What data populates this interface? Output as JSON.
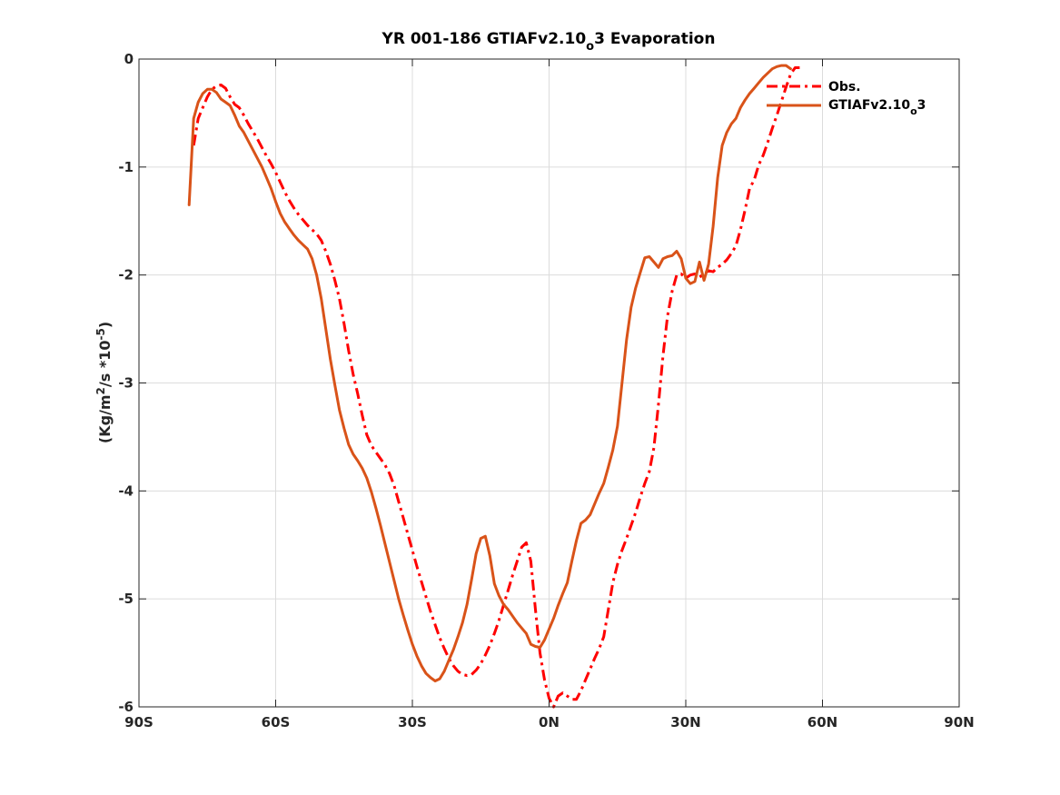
{
  "chart_data": {
    "type": "line",
    "title": {
      "main": "YR 001-186 GTIAFv2.10",
      "sub": "o",
      "tail": "3 Evaporation"
    },
    "ylabel": {
      "base": "(Kg/m",
      "sup1": "2",
      "mid": "/s *10",
      "sup2": "-5",
      "end": ")"
    },
    "xlabel": "",
    "xlim": [
      -90,
      90
    ],
    "ylim": [
      -6,
      0
    ],
    "xticks": [
      -90,
      -60,
      -30,
      0,
      30,
      60,
      90
    ],
    "xtick_labels": [
      "90S",
      "60S",
      "30S",
      "0N",
      "30N",
      "60N",
      "90N"
    ],
    "yticks": [
      0,
      -1,
      -2,
      -3,
      -4,
      -5,
      -6
    ],
    "ytick_labels": [
      "0",
      "-1",
      "-2",
      "-3",
      "-4",
      "-5",
      "-6"
    ],
    "grid": true,
    "legend_position": "top-right",
    "series": [
      {
        "name": "Obs.",
        "legend_label": {
          "main": "Obs.",
          "sub": "",
          "tail": ""
        },
        "color": "#ff0000",
        "style": "dashdot",
        "points": [
          [
            -78,
            -0.8
          ],
          [
            -77,
            -0.55
          ],
          [
            -76,
            -0.45
          ],
          [
            -75,
            -0.35
          ],
          [
            -74,
            -0.28
          ],
          [
            -73,
            -0.25
          ],
          [
            -72,
            -0.24
          ],
          [
            -71,
            -0.27
          ],
          [
            -70,
            -0.35
          ],
          [
            -69,
            -0.42
          ],
          [
            -68,
            -0.45
          ],
          [
            -67,
            -0.52
          ],
          [
            -66,
            -0.6
          ],
          [
            -65,
            -0.67
          ],
          [
            -64,
            -0.74
          ],
          [
            -63,
            -0.82
          ],
          [
            -62,
            -0.9
          ],
          [
            -61,
            -0.97
          ],
          [
            -60,
            -1.05
          ],
          [
            -59,
            -1.14
          ],
          [
            -58,
            -1.23
          ],
          [
            -57,
            -1.31
          ],
          [
            -56,
            -1.38
          ],
          [
            -55,
            -1.44
          ],
          [
            -54,
            -1.49
          ],
          [
            -53,
            -1.54
          ],
          [
            -52,
            -1.58
          ],
          [
            -51,
            -1.62
          ],
          [
            -50,
            -1.68
          ],
          [
            -49,
            -1.78
          ],
          [
            -48,
            -1.9
          ],
          [
            -47,
            -2.05
          ],
          [
            -46,
            -2.22
          ],
          [
            -45,
            -2.45
          ],
          [
            -44,
            -2.7
          ],
          [
            -43,
            -2.92
          ],
          [
            -42,
            -3.1
          ],
          [
            -41,
            -3.3
          ],
          [
            -40,
            -3.48
          ],
          [
            -39,
            -3.58
          ],
          [
            -38,
            -3.64
          ],
          [
            -37,
            -3.7
          ],
          [
            -36,
            -3.76
          ],
          [
            -35,
            -3.84
          ],
          [
            -34,
            -3.95
          ],
          [
            -33,
            -4.1
          ],
          [
            -32,
            -4.25
          ],
          [
            -31,
            -4.4
          ],
          [
            -30,
            -4.55
          ],
          [
            -29,
            -4.7
          ],
          [
            -28,
            -4.84
          ],
          [
            -27,
            -4.98
          ],
          [
            -26,
            -5.12
          ],
          [
            -25,
            -5.24
          ],
          [
            -24,
            -5.36
          ],
          [
            -23,
            -5.46
          ],
          [
            -22,
            -5.55
          ],
          [
            -21,
            -5.62
          ],
          [
            -20,
            -5.67
          ],
          [
            -19,
            -5.7
          ],
          [
            -18,
            -5.71
          ],
          [
            -17,
            -5.7
          ],
          [
            -16,
            -5.66
          ],
          [
            -15,
            -5.6
          ],
          [
            -14,
            -5.52
          ],
          [
            -13,
            -5.43
          ],
          [
            -12,
            -5.32
          ],
          [
            -11,
            -5.2
          ],
          [
            -10,
            -5.06
          ],
          [
            -9,
            -4.92
          ],
          [
            -8,
            -4.78
          ],
          [
            -7,
            -4.65
          ],
          [
            -6,
            -4.52
          ],
          [
            -5,
            -4.48
          ],
          [
            -4,
            -4.65
          ],
          [
            -3,
            -5.1
          ],
          [
            -2,
            -5.5
          ],
          [
            -1,
            -5.75
          ],
          [
            0,
            -5.92
          ],
          [
            1,
            -6.0
          ],
          [
            2,
            -5.9
          ],
          [
            3,
            -5.87
          ],
          [
            4,
            -5.9
          ],
          [
            5,
            -5.93
          ],
          [
            6,
            -5.93
          ],
          [
            7,
            -5.85
          ],
          [
            8,
            -5.75
          ],
          [
            9,
            -5.65
          ],
          [
            10,
            -5.55
          ],
          [
            11,
            -5.46
          ],
          [
            12,
            -5.35
          ],
          [
            13,
            -5.1
          ],
          [
            14,
            -4.85
          ],
          [
            15,
            -4.68
          ],
          [
            16,
            -4.55
          ],
          [
            17,
            -4.44
          ],
          [
            18,
            -4.32
          ],
          [
            19,
            -4.2
          ],
          [
            20,
            -4.06
          ],
          [
            21,
            -3.93
          ],
          [
            22,
            -3.82
          ],
          [
            23,
            -3.6
          ],
          [
            24,
            -3.2
          ],
          [
            25,
            -2.75
          ],
          [
            26,
            -2.38
          ],
          [
            27,
            -2.15
          ],
          [
            28,
            -2.0
          ],
          [
            29,
            -1.99
          ],
          [
            30,
            -2.03
          ],
          [
            31,
            -2.0
          ],
          [
            32,
            -1.99
          ],
          [
            33,
            -2.02
          ],
          [
            34,
            -1.99
          ],
          [
            35,
            -1.96
          ],
          [
            36,
            -1.97
          ],
          [
            37,
            -1.93
          ],
          [
            38,
            -1.9
          ],
          [
            39,
            -1.86
          ],
          [
            40,
            -1.8
          ],
          [
            41,
            -1.73
          ],
          [
            42,
            -1.58
          ],
          [
            43,
            -1.4
          ],
          [
            44,
            -1.2
          ],
          [
            45,
            -1.12
          ],
          [
            46,
            -0.98
          ],
          [
            47,
            -0.89
          ],
          [
            48,
            -0.77
          ],
          [
            49,
            -0.64
          ],
          [
            50,
            -0.52
          ],
          [
            51,
            -0.39
          ],
          [
            52,
            -0.26
          ],
          [
            53,
            -0.14
          ],
          [
            54,
            -0.08
          ],
          [
            55,
            -0.08
          ]
        ]
      },
      {
        "name": "GTIAFv2.10o3",
        "legend_label": {
          "main": "GTIAFv2.10",
          "sub": "o",
          "tail": "3"
        },
        "color": "#d95319",
        "style": "solid",
        "points": [
          [
            -79,
            -1.35
          ],
          [
            -78,
            -0.55
          ],
          [
            -77,
            -0.4
          ],
          [
            -76,
            -0.32
          ],
          [
            -75,
            -0.28
          ],
          [
            -74,
            -0.28
          ],
          [
            -73,
            -0.31
          ],
          [
            -72,
            -0.37
          ],
          [
            -71,
            -0.4
          ],
          [
            -70,
            -0.43
          ],
          [
            -69,
            -0.52
          ],
          [
            -68,
            -0.62
          ],
          [
            -67,
            -0.68
          ],
          [
            -66,
            -0.76
          ],
          [
            -65,
            -0.84
          ],
          [
            -64,
            -0.92
          ],
          [
            -63,
            -1.0
          ],
          [
            -62,
            -1.1
          ],
          [
            -61,
            -1.2
          ],
          [
            -60,
            -1.32
          ],
          [
            -59,
            -1.43
          ],
          [
            -58,
            -1.51
          ],
          [
            -57,
            -1.57
          ],
          [
            -56,
            -1.63
          ],
          [
            -55,
            -1.68
          ],
          [
            -54,
            -1.72
          ],
          [
            -53,
            -1.76
          ],
          [
            -52,
            -1.85
          ],
          [
            -51,
            -2.0
          ],
          [
            -50,
            -2.22
          ],
          [
            -49,
            -2.5
          ],
          [
            -48,
            -2.78
          ],
          [
            -47,
            -3.02
          ],
          [
            -46,
            -3.25
          ],
          [
            -45,
            -3.42
          ],
          [
            -44,
            -3.57
          ],
          [
            -43,
            -3.66
          ],
          [
            -42,
            -3.72
          ],
          [
            -41,
            -3.79
          ],
          [
            -40,
            -3.88
          ],
          [
            -39,
            -4.01
          ],
          [
            -38,
            -4.16
          ],
          [
            -37,
            -4.32
          ],
          [
            -36,
            -4.49
          ],
          [
            -35,
            -4.66
          ],
          [
            -34,
            -4.83
          ],
          [
            -33,
            -5.0
          ],
          [
            -32,
            -5.15
          ],
          [
            -31,
            -5.29
          ],
          [
            -30,
            -5.42
          ],
          [
            -29,
            -5.53
          ],
          [
            -28,
            -5.62
          ],
          [
            -27,
            -5.69
          ],
          [
            -26,
            -5.73
          ],
          [
            -25,
            -5.76
          ],
          [
            -24,
            -5.74
          ],
          [
            -23,
            -5.67
          ],
          [
            -22,
            -5.57
          ],
          [
            -21,
            -5.47
          ],
          [
            -20,
            -5.35
          ],
          [
            -19,
            -5.22
          ],
          [
            -18,
            -5.05
          ],
          [
            -17,
            -4.82
          ],
          [
            -16,
            -4.58
          ],
          [
            -15,
            -4.44
          ],
          [
            -14,
            -4.42
          ],
          [
            -13,
            -4.6
          ],
          [
            -12,
            -4.86
          ],
          [
            -11,
            -4.97
          ],
          [
            -10,
            -5.05
          ],
          [
            -9,
            -5.1
          ],
          [
            -8,
            -5.16
          ],
          [
            -7,
            -5.22
          ],
          [
            -6,
            -5.27
          ],
          [
            -5,
            -5.32
          ],
          [
            -4,
            -5.42
          ],
          [
            -3,
            -5.44
          ],
          [
            -2,
            -5.45
          ],
          [
            -1,
            -5.38
          ],
          [
            0,
            -5.28
          ],
          [
            1,
            -5.18
          ],
          [
            2,
            -5.06
          ],
          [
            3,
            -4.95
          ],
          [
            4,
            -4.85
          ],
          [
            5,
            -4.65
          ],
          [
            6,
            -4.46
          ],
          [
            7,
            -4.3
          ],
          [
            8,
            -4.27
          ],
          [
            9,
            -4.22
          ],
          [
            10,
            -4.12
          ],
          [
            11,
            -4.02
          ],
          [
            12,
            -3.93
          ],
          [
            13,
            -3.78
          ],
          [
            14,
            -3.62
          ],
          [
            15,
            -3.4
          ],
          [
            16,
            -3.0
          ],
          [
            17,
            -2.6
          ],
          [
            18,
            -2.3
          ],
          [
            19,
            -2.12
          ],
          [
            20,
            -1.98
          ],
          [
            21,
            -1.84
          ],
          [
            22,
            -1.83
          ],
          [
            23,
            -1.88
          ],
          [
            24,
            -1.93
          ],
          [
            25,
            -1.85
          ],
          [
            26,
            -1.83
          ],
          [
            27,
            -1.82
          ],
          [
            28,
            -1.78
          ],
          [
            29,
            -1.85
          ],
          [
            30,
            -2.03
          ],
          [
            31,
            -2.08
          ],
          [
            32,
            -2.06
          ],
          [
            33,
            -1.88
          ],
          [
            34,
            -2.05
          ],
          [
            35,
            -1.9
          ],
          [
            36,
            -1.55
          ],
          [
            37,
            -1.1
          ],
          [
            38,
            -0.8
          ],
          [
            39,
            -0.68
          ],
          [
            40,
            -0.6
          ],
          [
            41,
            -0.55
          ],
          [
            42,
            -0.45
          ],
          [
            43,
            -0.38
          ],
          [
            44,
            -0.32
          ],
          [
            45,
            -0.27
          ],
          [
            46,
            -0.22
          ],
          [
            47,
            -0.17
          ],
          [
            48,
            -0.13
          ],
          [
            49,
            -0.09
          ],
          [
            50,
            -0.07
          ],
          [
            51,
            -0.06
          ],
          [
            52,
            -0.06
          ],
          [
            53,
            -0.09
          ]
        ]
      }
    ]
  }
}
